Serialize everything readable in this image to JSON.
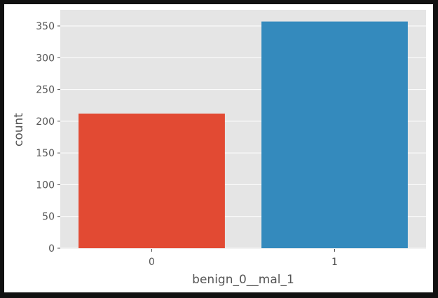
{
  "chart_data": {
    "type": "bar",
    "categories": [
      "0",
      "1"
    ],
    "values": [
      212,
      357
    ],
    "colors": [
      "#E24A33",
      "#348ABD"
    ],
    "xlabel": "benign_0__mal_1",
    "ylabel": "count",
    "ylim": [
      0,
      375
    ],
    "yticks": [
      0,
      50,
      100,
      150,
      200,
      250,
      300,
      350
    ],
    "grid": true,
    "background": "#E5E5E5"
  }
}
